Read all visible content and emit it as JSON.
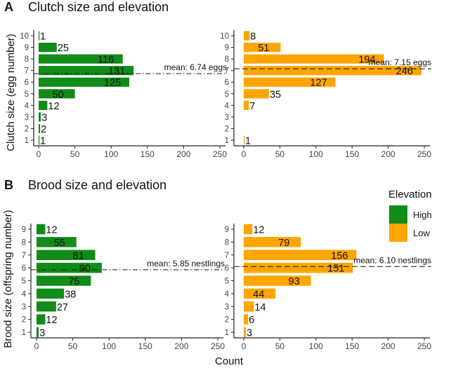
{
  "panels": [
    {
      "letter": "A",
      "title": "Clutch size and elevation",
      "ylabel": "Clutch size (egg number)"
    },
    {
      "letter": "B",
      "title": "Brood size and elevation",
      "ylabel": "Brood size (offspring number)"
    }
  ],
  "xlabel": "Count",
  "legend": {
    "title": "Elevation",
    "items": [
      {
        "label": "High",
        "color": "#118c18"
      },
      {
        "label": "Low",
        "color": "#ffa500"
      }
    ]
  },
  "chart_data": [
    {
      "type": "bar",
      "orientation": "horizontal",
      "panel": "A",
      "group": "High",
      "categories": [
        "1",
        "2",
        "3",
        "4",
        "5",
        "6",
        "7",
        "8",
        "9",
        "10"
      ],
      "values": [
        1,
        2,
        3,
        12,
        50,
        125,
        131,
        116,
        25,
        1
      ],
      "labels": [
        "1",
        "2",
        "3",
        "12",
        "50",
        "125",
        "131",
        "116",
        "25",
        "1"
      ],
      "xlim": [
        0,
        250
      ],
      "xticks": [
        "0",
        "50",
        "100",
        "150",
        "200",
        "250"
      ],
      "mean": 6.74,
      "mean_label": "mean: 6.74 eggs",
      "mean_style": "dashdot"
    },
    {
      "type": "bar",
      "orientation": "horizontal",
      "panel": "A",
      "group": "Low",
      "categories": [
        "1",
        "2",
        "3",
        "4",
        "5",
        "6",
        "7",
        "8",
        "9",
        "10"
      ],
      "values": [
        1,
        0,
        0,
        7,
        35,
        127,
        246,
        194,
        51,
        8
      ],
      "labels": [
        "1",
        "",
        "",
        "7",
        "35",
        "127",
        "246",
        "194",
        "51",
        "8"
      ],
      "xlim": [
        0,
        250
      ],
      "xticks": [
        "0",
        "50",
        "100",
        "150",
        "200",
        "250"
      ],
      "mean": 7.15,
      "mean_label": "mean: 7.15 eggs",
      "mean_style": "dashed"
    },
    {
      "type": "bar",
      "orientation": "horizontal",
      "panel": "B",
      "group": "High",
      "categories": [
        "1",
        "2",
        "3",
        "4",
        "5",
        "6",
        "7",
        "8",
        "9"
      ],
      "values": [
        3,
        12,
        27,
        38,
        75,
        90,
        81,
        55,
        12
      ],
      "labels": [
        "3",
        "12",
        "27",
        "38",
        "75",
        "90",
        "81",
        "55",
        "12"
      ],
      "xlim": [
        0,
        250
      ],
      "xticks": [
        "0",
        "50",
        "100",
        "150",
        "200",
        "250"
      ],
      "mean": 5.85,
      "mean_label": "mean: 5.85 nestlings",
      "mean_style": "dashdot"
    },
    {
      "type": "bar",
      "orientation": "horizontal",
      "panel": "B",
      "group": "Low",
      "categories": [
        "1",
        "2",
        "3",
        "4",
        "5",
        "6",
        "7",
        "8",
        "9"
      ],
      "values": [
        3,
        6,
        14,
        44,
        93,
        151,
        156,
        79,
        12
      ],
      "labels": [
        "3",
        "6",
        "14",
        "44",
        "93",
        "151",
        "156",
        "79",
        "12"
      ],
      "xlim": [
        0,
        250
      ],
      "xticks": [
        "0",
        "50",
        "100",
        "150",
        "200",
        "250"
      ],
      "mean": 6.1,
      "mean_label": "mean: 6.10 nestlings",
      "mean_style": "dashed"
    }
  ]
}
